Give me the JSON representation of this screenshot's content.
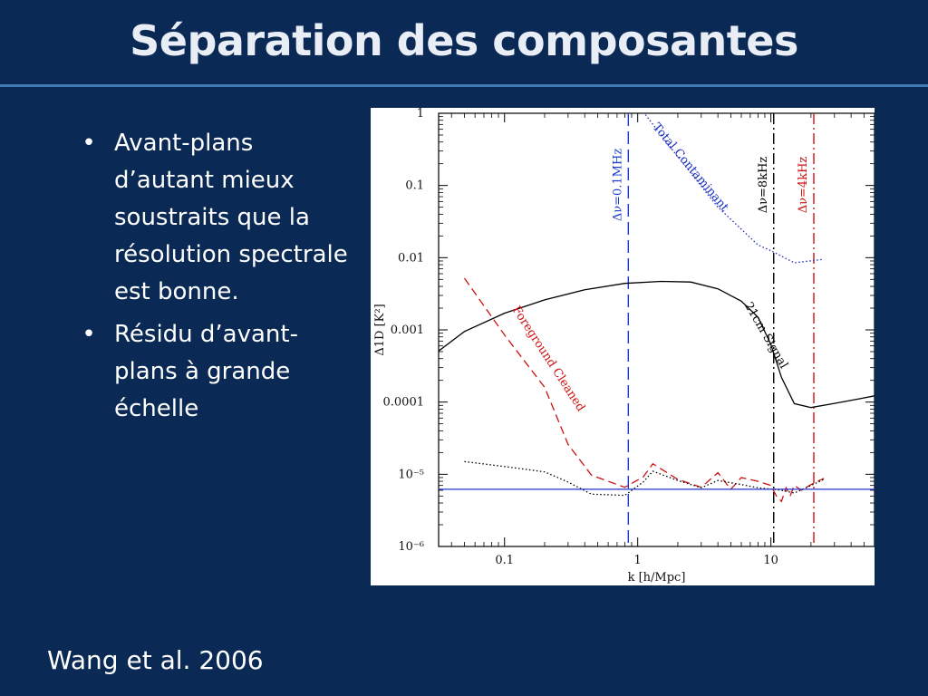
{
  "slide": {
    "title": "Séparation des composantes",
    "bullets": [
      "Avant-plans d’autant mieux soustraits que la résolution spectrale est bonne.",
      "Résidu d’avant-plans à grande échelle"
    ],
    "bullet_glyph": "•",
    "credit": "Wang et al. 2006",
    "background_color": "#0a2a55",
    "rule_color": "#3f79b6"
  },
  "chart_data": {
    "type": "line",
    "xlabel": "k [h/Mpc]",
    "ylabel": "Δ1D [K²]",
    "x_scale": "log",
    "y_scale": "log",
    "xlim": [
      0.032,
      60
    ],
    "ylim": [
      1e-06,
      1
    ],
    "x_ticks": [
      {
        "value": 0.1,
        "label": "0.1"
      },
      {
        "value": 1,
        "label": "1"
      },
      {
        "value": 10,
        "label": "10"
      }
    ],
    "y_ticks": [
      {
        "value": 1,
        "label": "1"
      },
      {
        "value": 0.1,
        "label": "0.1"
      },
      {
        "value": 0.01,
        "label": "0.01"
      },
      {
        "value": 0.001,
        "label": "0.001"
      },
      {
        "value": 0.0001,
        "label": "0.0001"
      },
      {
        "value": 1e-05,
        "label": "10⁻⁵"
      },
      {
        "value": 1e-06,
        "label": "10⁻⁶"
      }
    ],
    "series": [
      {
        "name": "21cm Signal",
        "color": "#000000",
        "style": "solid",
        "x": [
          0.032,
          0.05,
          0.1,
          0.2,
          0.4,
          0.8,
          1.5,
          2.5,
          4,
          6,
          8,
          10,
          12,
          15,
          20,
          30,
          45,
          60
        ],
        "y": [
          0.00051,
          0.00095,
          0.0017,
          0.0026,
          0.0036,
          0.0044,
          0.0047,
          0.0046,
          0.0037,
          0.0025,
          0.0015,
          0.00063,
          0.00022,
          9.5e-05,
          8.4e-05,
          9.6e-05,
          0.00011,
          0.000122
        ],
        "label_text": "21cm Signal"
      },
      {
        "name": "Foreground Cleaned",
        "color": "#cc1111",
        "style": "dashed",
        "x": [
          0.05,
          0.1,
          0.2,
          0.3,
          0.45,
          0.8,
          1.1,
          1.3,
          2,
          3,
          4,
          5,
          6,
          8,
          10,
          11,
          12,
          13,
          14,
          15,
          17,
          20,
          25
        ],
        "y": [
          0.0052,
          0.00085,
          0.00016,
          2.6e-05,
          9.7e-06,
          6.6e-06,
          9.2e-06,
          1.4e-05,
          8.5e-06,
          6.6e-06,
          1.05e-05,
          6.2e-06,
          9e-06,
          8e-06,
          7e-06,
          5e-06,
          4.2e-06,
          6.5e-06,
          5.1e-06,
          7e-06,
          6e-06,
          7.2e-06,
          8.8e-06
        ],
        "label_text": "Foreground Cleaned"
      },
      {
        "name": "Total Contaminant",
        "color": "#1a2ec0",
        "style": "dotted",
        "x": [
          1.1,
          2,
          4,
          8,
          10,
          15,
          25
        ],
        "y": [
          1.05,
          0.25,
          0.05,
          0.015,
          0.0125,
          0.0085,
          0.0095
        ],
        "label_text": "Total Contaminant"
      },
      {
        "name": "residual",
        "color": "#000000",
        "style": "dotted",
        "x": [
          0.05,
          0.1,
          0.2,
          0.3,
          0.45,
          0.8,
          1.1,
          1.3,
          2,
          3,
          4,
          6,
          8,
          12,
          15,
          20,
          25
        ],
        "y": [
          1.5e-05,
          1.28e-05,
          1.08e-05,
          7.8e-06,
          5.3e-06,
          5.1e-06,
          7.8e-06,
          1.1e-05,
          8.2e-06,
          6.5e-06,
          8.2e-06,
          7.2e-06,
          6.5e-06,
          6e-06,
          5.5e-06,
          7e-06,
          8.5e-06
        ]
      },
      {
        "name": "noise level",
        "color": "#2233cc",
        "style": "solid",
        "x": [
          0.032,
          60
        ],
        "y": [
          6.2e-06,
          6.2e-06
        ]
      }
    ],
    "vlines": [
      {
        "x": 0.85,
        "color": "#1a3ccc",
        "style": "longdash",
        "label_text": "Δν=0.1MHz"
      },
      {
        "x": 10.5,
        "color": "#000000",
        "style": "dashdot",
        "label_text": "Δν=8kHz"
      },
      {
        "x": 21,
        "color": "#cc1111",
        "style": "dashdot",
        "label_text": "Δν=4kHz"
      }
    ]
  }
}
